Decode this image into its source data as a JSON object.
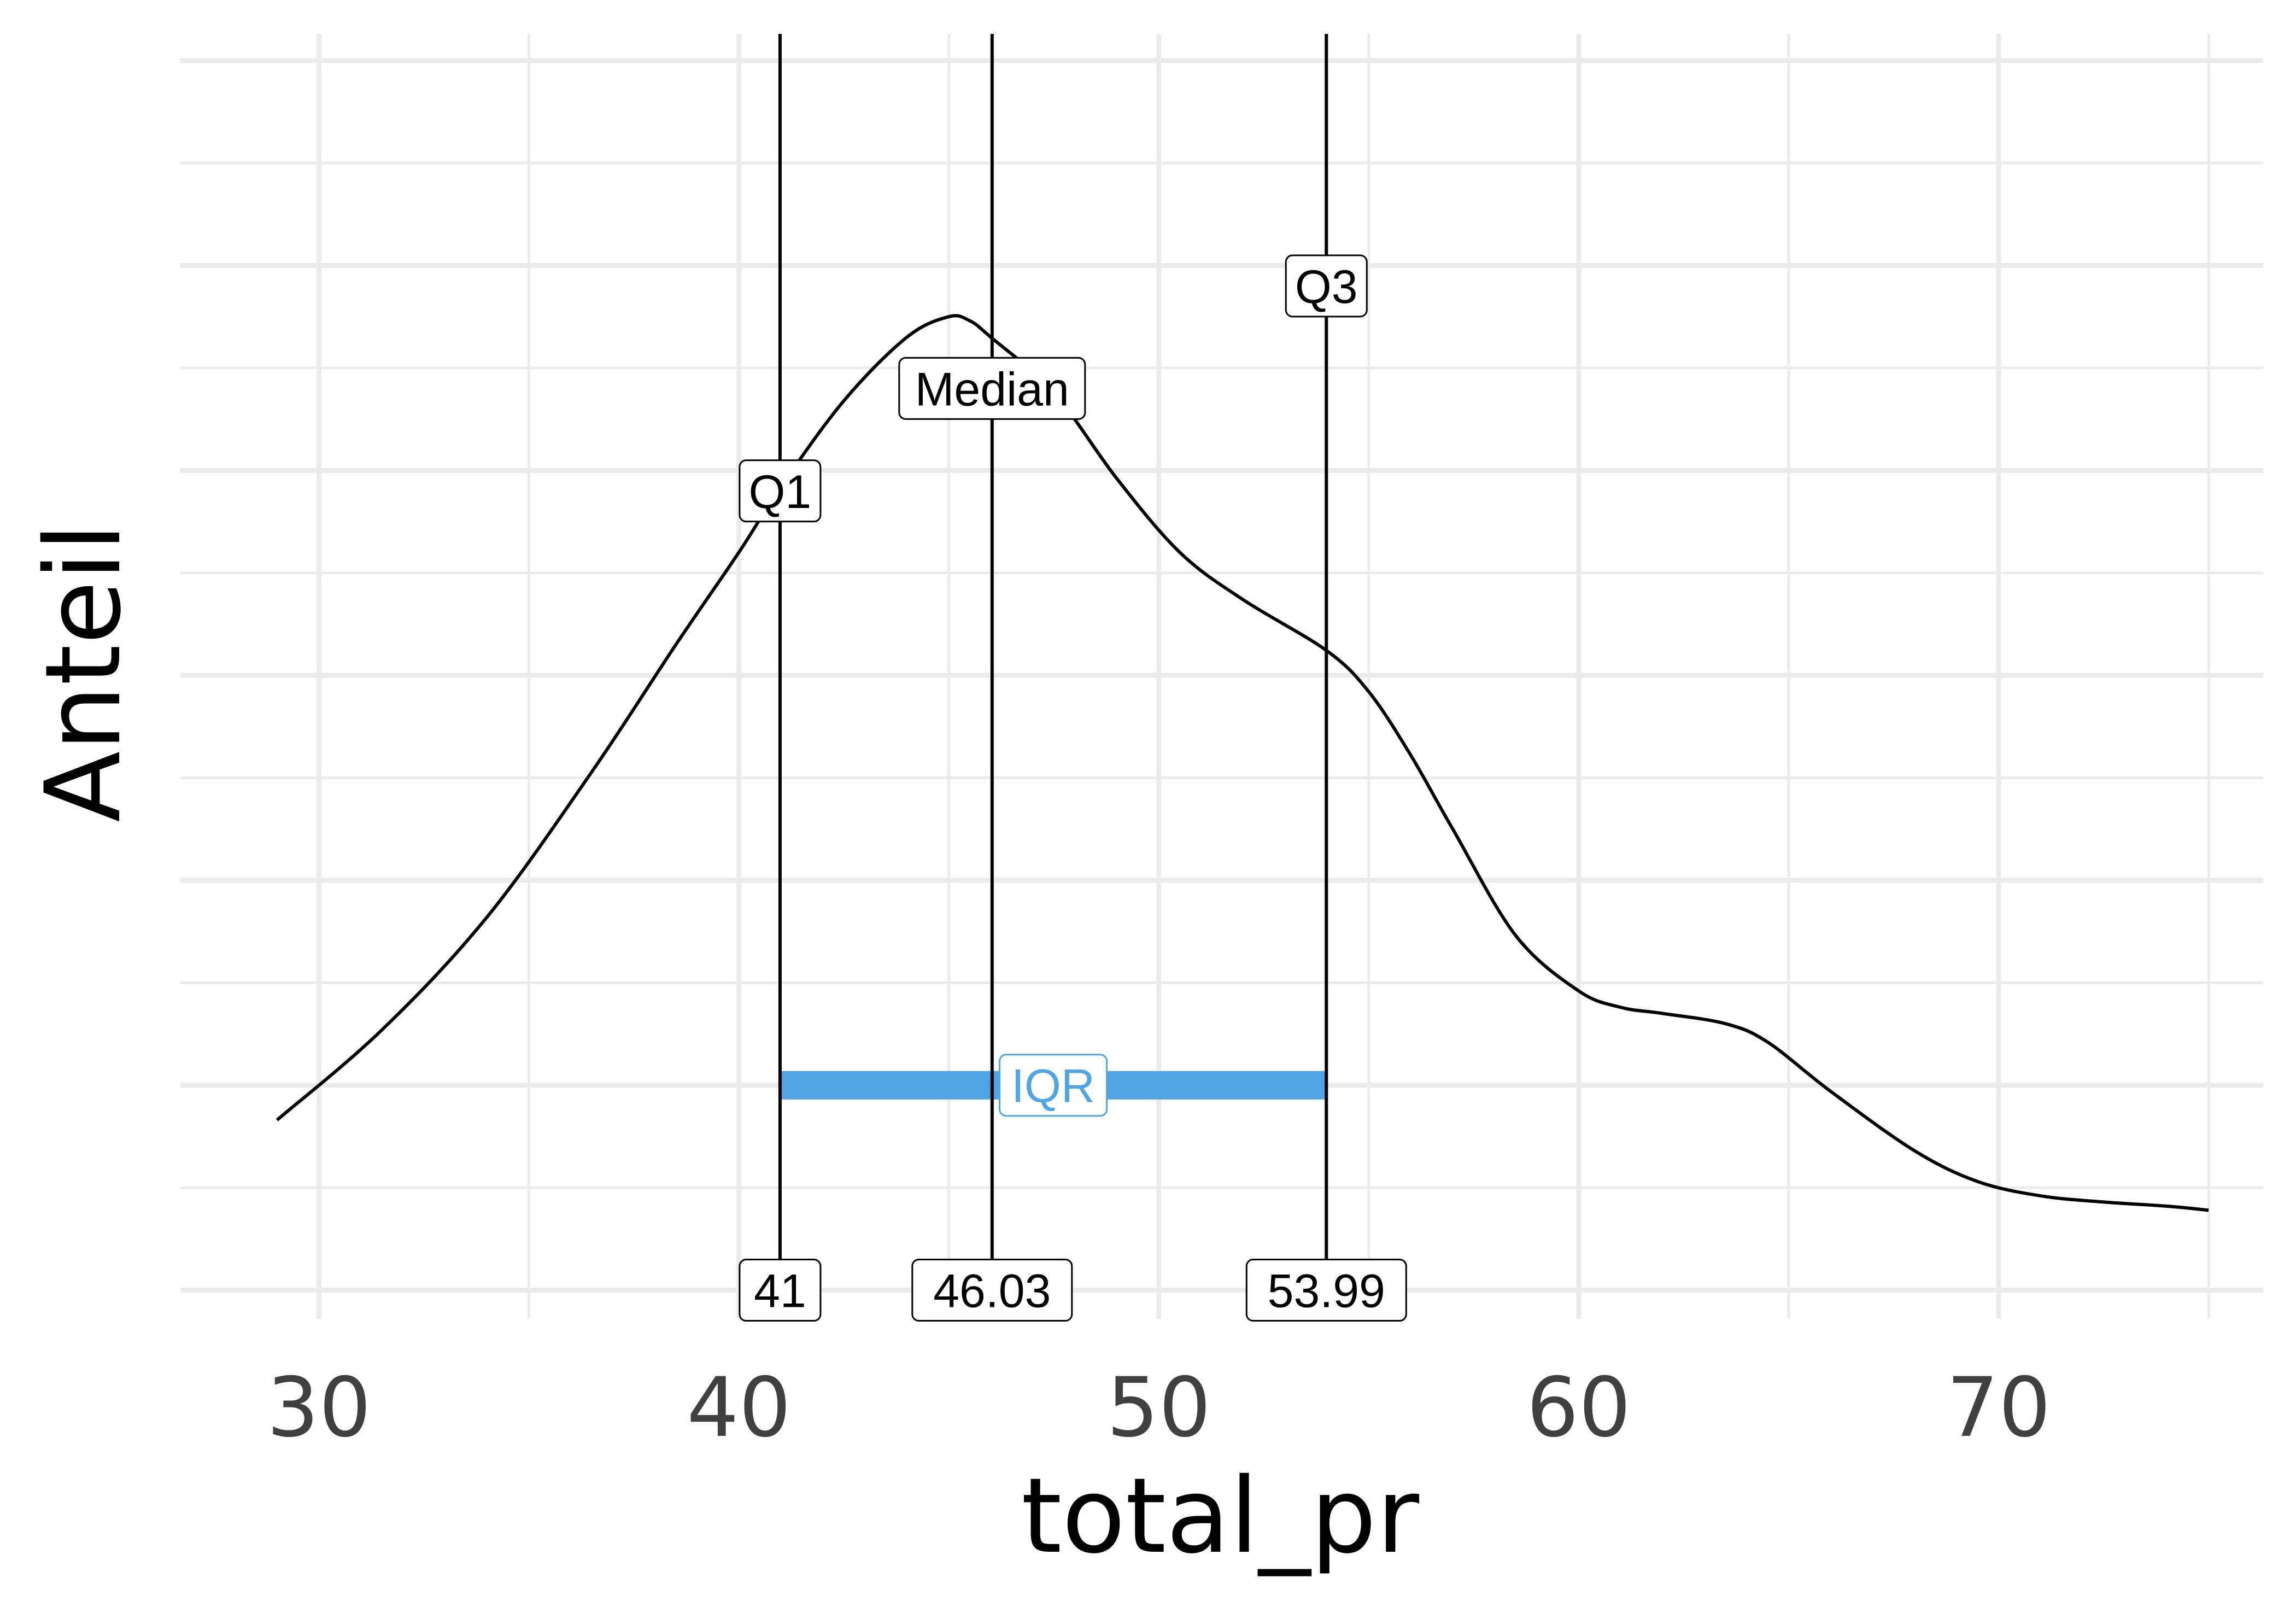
{
  "chart_data": {
    "type": "line",
    "title": "",
    "xlabel": "total_pr",
    "ylabel": "Anteil",
    "xlim": [
      26.7,
      76.3
    ],
    "ylim": [
      -0.0014,
      0.0613
    ],
    "x_ticks": [
      30,
      40,
      50,
      60,
      70
    ],
    "x_tick_labels": [
      "30",
      "40",
      "50",
      "60",
      "70"
    ],
    "y_tick_labels_shown": false,
    "grid": true,
    "legend": "none",
    "series": [
      {
        "x": [
          29,
          31.5,
          34,
          36.5,
          38.5,
          40,
          41,
          42.5,
          44,
          45,
          45.5,
          46,
          47.5,
          49,
          50.5,
          52,
          54,
          55,
          56,
          57,
          58.5,
          60,
          61,
          62,
          63.5,
          64.5,
          66,
          68,
          69.5,
          71,
          72.5,
          74,
          75
        ],
        "y": [
          0.0083,
          0.0127,
          0.0182,
          0.0253,
          0.0315,
          0.036,
          0.0392,
          0.0434,
          0.0465,
          0.0475,
          0.0473,
          0.0465,
          0.0438,
          0.0396,
          0.036,
          0.0337,
          0.0312,
          0.0292,
          0.0261,
          0.0225,
          0.0173,
          0.0146,
          0.0138,
          0.0135,
          0.013,
          0.0121,
          0.0097,
          0.0068,
          0.0053,
          0.0046,
          0.0043,
          0.0041,
          0.0039
        ],
        "color": "#000000"
      }
    ],
    "vlines": [
      {
        "x": 40.98,
        "label": "Q1",
        "label_y": 0.039,
        "value_label": "41"
      },
      {
        "x": 46.03,
        "label": "Median",
        "label_y": 0.044,
        "value_label": "46.03"
      },
      {
        "x": 53.99,
        "label": "Q3",
        "label_y": 0.049,
        "value_label": "53.99"
      }
    ],
    "iqr": {
      "x_start": 40.98,
      "x_end": 53.99,
      "y": 0.01,
      "label": "IQR",
      "color": "#4FA6E3"
    }
  }
}
